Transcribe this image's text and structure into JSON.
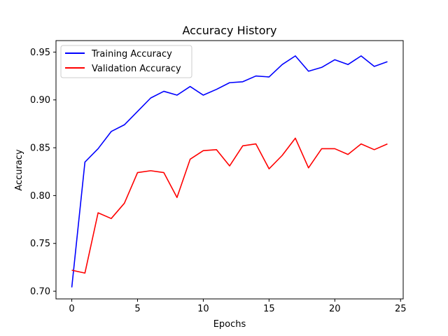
{
  "chart_data": {
    "type": "line",
    "title": "Accuracy History",
    "xlabel": "Epochs",
    "ylabel": "Accuracy",
    "xlim": [
      -1.2,
      25.2
    ],
    "ylim": [
      0.692,
      0.962
    ],
    "xticks": [
      0,
      5,
      10,
      15,
      20,
      25
    ],
    "yticks": [
      0.7,
      0.75,
      0.8,
      0.85,
      0.9,
      0.95
    ],
    "xtick_labels": [
      "0",
      "5",
      "10",
      "15",
      "20",
      "25"
    ],
    "ytick_labels": [
      "0.70",
      "0.75",
      "0.80",
      "0.85",
      "0.90",
      "0.95"
    ],
    "grid": false,
    "legend_position": "upper-left",
    "x": [
      0,
      1,
      2,
      3,
      4,
      5,
      6,
      7,
      8,
      9,
      10,
      11,
      12,
      13,
      14,
      15,
      16,
      17,
      18,
      19,
      20,
      21,
      22,
      23,
      24
    ],
    "series": [
      {
        "name": "Training Accuracy",
        "color": "#0000ff",
        "values": [
          0.704,
          0.835,
          0.849,
          0.867,
          0.874,
          0.888,
          0.902,
          0.909,
          0.905,
          0.914,
          0.905,
          0.911,
          0.918,
          0.919,
          0.925,
          0.924,
          0.937,
          0.946,
          0.93,
          0.934,
          0.942,
          0.937,
          0.946,
          0.935,
          0.94
        ]
      },
      {
        "name": "Validation Accuracy",
        "color": "#ff0000",
        "values": [
          0.722,
          0.719,
          0.782,
          0.776,
          0.792,
          0.824,
          0.826,
          0.824,
          0.798,
          0.838,
          0.847,
          0.848,
          0.831,
          0.852,
          0.854,
          0.828,
          0.842,
          0.86,
          0.829,
          0.849,
          0.849,
          0.843,
          0.854,
          0.848,
          0.854
        ]
      }
    ]
  }
}
